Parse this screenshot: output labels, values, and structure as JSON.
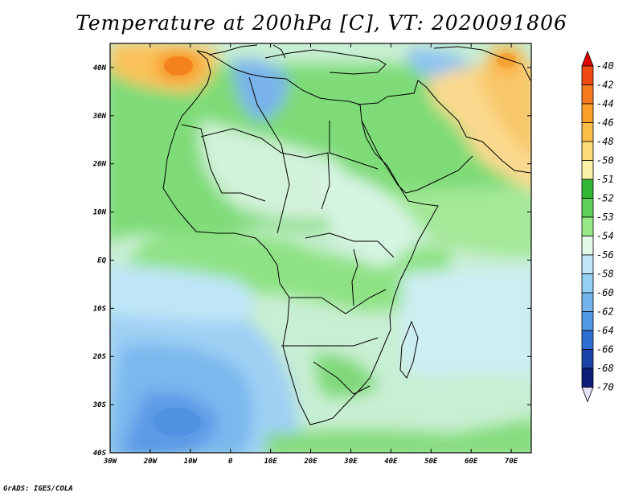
{
  "title": "Temperature at 200hPa [C], VT: 2020091806",
  "credit": "GrADS: IGES/COLA",
  "map": {
    "variable": "Temperature at 200hPa",
    "units": "C",
    "valid_time": "2020091806",
    "region": "Africa",
    "lon_range": [
      -30,
      75
    ],
    "lat_range": [
      -40,
      45
    ],
    "lon_ticks": [
      "30W",
      "20W",
      "10W",
      "0",
      "10E",
      "20E",
      "30E",
      "40E",
      "50E",
      "60E",
      "70E"
    ],
    "lat_ticks": [
      "40N",
      "30N",
      "20N",
      "10N",
      "EQ",
      "10S",
      "20S",
      "30S",
      "40S"
    ],
    "features": [
      {
        "name": "warm-core-northwest",
        "label": "about -44 to -46 C over Morocco",
        "level": -45
      },
      {
        "name": "warm-region-east",
        "label": "about -48 to -51 C over Arabia/Iran",
        "level": -49
      },
      {
        "name": "warm-core-northeast",
        "label": "about -46 C over Central Asia",
        "level": -46
      },
      {
        "name": "cold-pool-southwest",
        "label": "about -58 to -62 C over South Atlantic",
        "level": -60
      },
      {
        "name": "cold-pool-mediterranean",
        "label": "about -56 to -58 C",
        "level": -57
      }
    ]
  },
  "legend": {
    "levels": [
      "-40",
      "-42",
      "-44",
      "-46",
      "-48",
      "-50",
      "-51",
      "-52",
      "-53",
      "-54",
      "-56",
      "-58",
      "-60",
      "-62",
      "-64",
      "-66",
      "-68",
      "-70"
    ],
    "colors": [
      "#e00000",
      "#f04a14",
      "#f67a1e",
      "#fa9e2a",
      "#fbbe48",
      "#fcdc78",
      "#fbf0a8",
      "#33b835",
      "#5ed25a",
      "#96e888",
      "#e4f8e6",
      "#bfe6f8",
      "#94cff4",
      "#73b4ec",
      "#5099e4",
      "#2f6fd4",
      "#1a44a8",
      "#0c1e78",
      "#e6e4f8"
    ]
  }
}
